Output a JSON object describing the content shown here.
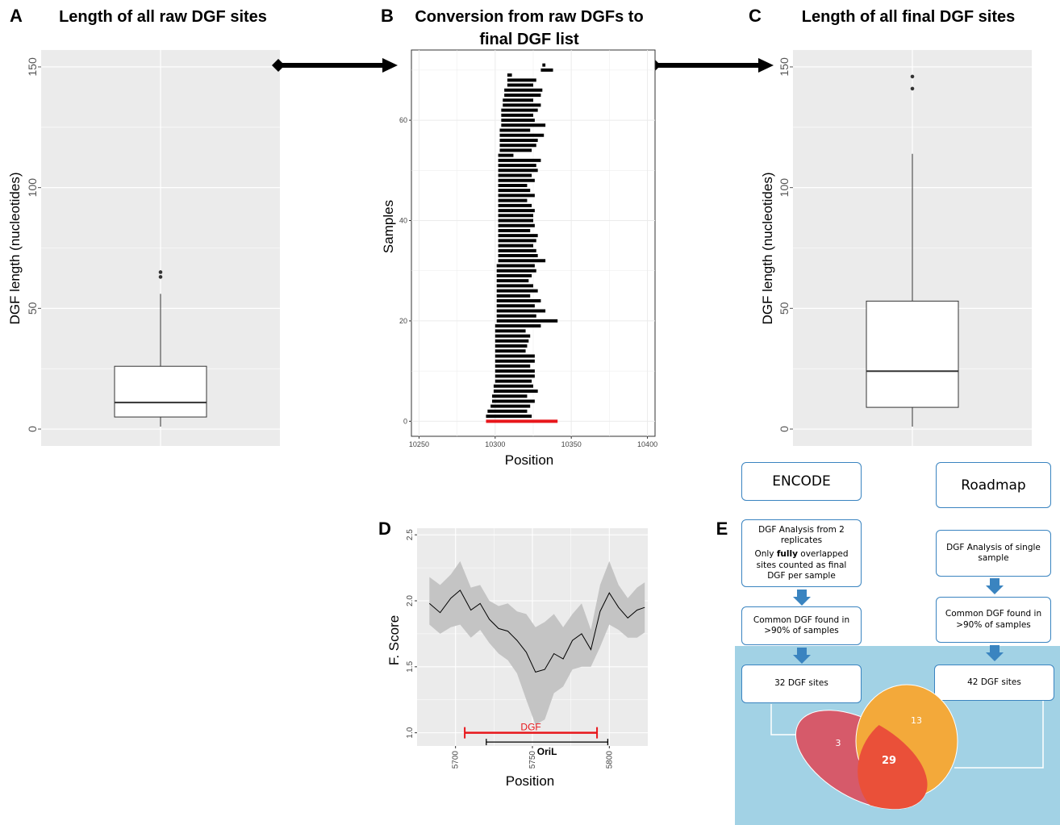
{
  "panels": {
    "A": {
      "letter": "A",
      "title": "Length of all raw DGF sites",
      "ylabel": "DGF length (nucleotides)",
      "yticks": [
        "0",
        "50",
        "100",
        "150"
      ]
    },
    "B": {
      "letter": "B",
      "title_line1": "Conversion from raw DGFs to",
      "title_line2": "final DGF list",
      "xlabel": "Position",
      "ylabel": "Samples",
      "xticks": [
        "10250",
        "10300",
        "10350",
        "10400"
      ],
      "yticks": [
        "0",
        "20",
        "40",
        "60"
      ]
    },
    "C": {
      "letter": "C",
      "title": "Length of all final DGF sites",
      "ylabel": "DGF length (nucleotides)",
      "yticks": [
        "0",
        "50",
        "100",
        "150"
      ]
    },
    "D": {
      "letter": "D",
      "xlabel": "Position",
      "ylabel": "F. Score",
      "xticks": [
        "5700",
        "5750",
        "5800"
      ],
      "yticks": [
        "1.0",
        "1.5",
        "2.0",
        "2.5"
      ],
      "dgf_label": "DGF",
      "oril_label": "OriL"
    },
    "E": {
      "letter": "E",
      "encode": {
        "title": "ENCODE",
        "analysis_line1": "DGF Analysis from 2 replicates",
        "analysis_pre": "Only ",
        "analysis_bold": "fully",
        "analysis_post": " overlapped sites counted as final DGF per sample",
        "common": "Common DGF found in >90% of samples",
        "sites": "32 DGF sites"
      },
      "roadmap": {
        "title": "Roadmap",
        "analysis": "DGF Analysis of single sample",
        "common": "Common DGF found in >90% of samples",
        "sites": "42 DGF sites"
      },
      "venn": {
        "encode_only": "3",
        "roadmap_only": "13",
        "both": "29"
      }
    }
  },
  "colors": {
    "panel_bg": "#ebebeb",
    "red": "#e8161b",
    "blue_arrow": "#3a84c0",
    "blue_area": "#a2d2e5",
    "venn_left": "#d65a6a",
    "venn_right": "#f3a93a",
    "venn_overlap": "#ea5039"
  },
  "chart_data": [
    {
      "panel": "A",
      "type": "box",
      "title": "Length of all raw DGF sites",
      "ylabel": "DGF length (nucleotides)",
      "ylim": [
        -7,
        157
      ],
      "box": {
        "min": 1,
        "q1": 5,
        "median": 11,
        "q3": 26,
        "max": 56,
        "outliers": [
          63,
          65
        ]
      },
      "grid": true
    },
    {
      "panel": "B",
      "type": "segments",
      "title": "Conversion from raw DGFs to final DGF list",
      "xlabel": "Position",
      "ylabel": "Samples",
      "xlim": [
        10245,
        10405
      ],
      "ylim": [
        -3,
        74
      ],
      "final_segment": {
        "sample": 0,
        "start": 10294,
        "end": 10341
      },
      "segments": [
        {
          "sample": 1,
          "start": 10294,
          "end": 10324
        },
        {
          "sample": 2,
          "start": 10295,
          "end": 10321
        },
        {
          "sample": 3,
          "start": 10297,
          "end": 10323
        },
        {
          "sample": 4,
          "start": 10298,
          "end": 10326
        },
        {
          "sample": 5,
          "start": 10298,
          "end": 10321
        },
        {
          "sample": 6,
          "start": 10299,
          "end": 10328
        },
        {
          "sample": 7,
          "start": 10299,
          "end": 10325
        },
        {
          "sample": 8,
          "start": 10300,
          "end": 10324
        },
        {
          "sample": 9,
          "start": 10300,
          "end": 10326
        },
        {
          "sample": 10,
          "start": 10300,
          "end": 10326
        },
        {
          "sample": 11,
          "start": 10300,
          "end": 10323
        },
        {
          "sample": 12,
          "start": 10300,
          "end": 10326
        },
        {
          "sample": 13,
          "start": 10300,
          "end": 10326
        },
        {
          "sample": 14,
          "start": 10300,
          "end": 10320
        },
        {
          "sample": 15,
          "start": 10300,
          "end": 10321
        },
        {
          "sample": 16,
          "start": 10300,
          "end": 10322
        },
        {
          "sample": 17,
          "start": 10300,
          "end": 10323
        },
        {
          "sample": 18,
          "start": 10300,
          "end": 10320
        },
        {
          "sample": 19,
          "start": 10300,
          "end": 10330
        },
        {
          "sample": 20,
          "start": 10301,
          "end": 10341
        },
        {
          "sample": 21,
          "start": 10301,
          "end": 10327
        },
        {
          "sample": 22,
          "start": 10301,
          "end": 10333
        },
        {
          "sample": 23,
          "start": 10301,
          "end": 10326
        },
        {
          "sample": 24,
          "start": 10301,
          "end": 10330
        },
        {
          "sample": 25,
          "start": 10301,
          "end": 10323
        },
        {
          "sample": 26,
          "start": 10301,
          "end": 10328
        },
        {
          "sample": 27,
          "start": 10301,
          "end": 10325
        },
        {
          "sample": 28,
          "start": 10301,
          "end": 10322
        },
        {
          "sample": 29,
          "start": 10301,
          "end": 10324
        },
        {
          "sample": 30,
          "start": 10301,
          "end": 10327
        },
        {
          "sample": 31,
          "start": 10301,
          "end": 10326
        },
        {
          "sample": 32,
          "start": 10302,
          "end": 10333
        },
        {
          "sample": 33,
          "start": 10302,
          "end": 10328
        },
        {
          "sample": 34,
          "start": 10302,
          "end": 10327
        },
        {
          "sample": 35,
          "start": 10302,
          "end": 10325
        },
        {
          "sample": 36,
          "start": 10302,
          "end": 10327
        },
        {
          "sample": 37,
          "start": 10302,
          "end": 10328
        },
        {
          "sample": 38,
          "start": 10302,
          "end": 10323
        },
        {
          "sample": 39,
          "start": 10302,
          "end": 10326
        },
        {
          "sample": 40,
          "start": 10302,
          "end": 10325
        },
        {
          "sample": 41,
          "start": 10302,
          "end": 10325
        },
        {
          "sample": 42,
          "start": 10302,
          "end": 10326
        },
        {
          "sample": 43,
          "start": 10302,
          "end": 10324
        },
        {
          "sample": 44,
          "start": 10302,
          "end": 10321
        },
        {
          "sample": 45,
          "start": 10302,
          "end": 10326
        },
        {
          "sample": 46,
          "start": 10302,
          "end": 10323
        },
        {
          "sample": 47,
          "start": 10302,
          "end": 10321
        },
        {
          "sample": 48,
          "start": 10302,
          "end": 10326
        },
        {
          "sample": 49,
          "start": 10302,
          "end": 10324
        },
        {
          "sample": 50,
          "start": 10302,
          "end": 10328
        },
        {
          "sample": 51,
          "start": 10302,
          "end": 10327
        },
        {
          "sample": 52,
          "start": 10302,
          "end": 10330
        },
        {
          "sample": 53,
          "start": 10302,
          "end": 10312
        },
        {
          "sample": 54,
          "start": 10303,
          "end": 10324
        },
        {
          "sample": 55,
          "start": 10303,
          "end": 10327
        },
        {
          "sample": 56,
          "start": 10303,
          "end": 10328
        },
        {
          "sample": 57,
          "start": 10303,
          "end": 10332
        },
        {
          "sample": 58,
          "start": 10303,
          "end": 10323
        },
        {
          "sample": 59,
          "start": 10304,
          "end": 10333
        },
        {
          "sample": 60,
          "start": 10304,
          "end": 10326
        },
        {
          "sample": 61,
          "start": 10304,
          "end": 10325
        },
        {
          "sample": 62,
          "start": 10304,
          "end": 10328
        },
        {
          "sample": 63,
          "start": 10305,
          "end": 10330
        },
        {
          "sample": 64,
          "start": 10305,
          "end": 10325
        },
        {
          "sample": 65,
          "start": 10306,
          "end": 10330
        },
        {
          "sample": 66,
          "start": 10306,
          "end": 10331
        },
        {
          "sample": 67,
          "start": 10308,
          "end": 10325
        },
        {
          "sample": 68,
          "start": 10308,
          "end": 10327
        },
        {
          "sample": 69,
          "start": 10308,
          "end": 10311
        },
        {
          "sample": 70,
          "start": 10330,
          "end": 10338
        },
        {
          "sample": 71,
          "start": 10331,
          "end": 10333
        }
      ],
      "grid": true
    },
    {
      "panel": "C",
      "type": "box",
      "title": "Length of all final DGF sites",
      "ylabel": "DGF length (nucleotides)",
      "ylim": [
        -7,
        157
      ],
      "box": {
        "min": 1,
        "q1": 9,
        "median": 24,
        "q3": 53,
        "max": 114,
        "outliers": [
          141,
          146
        ]
      },
      "grid": true
    },
    {
      "panel": "D",
      "type": "line",
      "xlabel": "Position",
      "ylabel": "F. Score",
      "xlim": [
        5675,
        5825
      ],
      "ylim": [
        0.9,
        2.55
      ],
      "x": [
        5683,
        5690,
        5697,
        5703,
        5710,
        5716,
        5722,
        5728,
        5734,
        5740,
        5746,
        5752,
        5758,
        5764,
        5770,
        5776,
        5782,
        5788,
        5794,
        5800,
        5806,
        5812,
        5818,
        5823
      ],
      "y": [
        1.98,
        1.91,
        2.02,
        2.08,
        1.93,
        1.98,
        1.86,
        1.79,
        1.77,
        1.7,
        1.61,
        1.46,
        1.48,
        1.6,
        1.56,
        1.7,
        1.75,
        1.63,
        1.92,
        2.06,
        1.95,
        1.87,
        1.93,
        1.95
      ],
      "lower": [
        1.82,
        1.75,
        1.8,
        1.82,
        1.72,
        1.78,
        1.68,
        1.6,
        1.55,
        1.45,
        1.25,
        1.06,
        1.1,
        1.3,
        1.35,
        1.48,
        1.5,
        1.5,
        1.65,
        1.82,
        1.78,
        1.72,
        1.72,
        1.76
      ],
      "upper": [
        2.18,
        2.12,
        2.2,
        2.3,
        2.1,
        2.12,
        2.0,
        1.96,
        1.98,
        1.92,
        1.9,
        1.8,
        1.84,
        1.9,
        1.8,
        1.9,
        1.98,
        1.78,
        2.12,
        2.3,
        2.12,
        2.02,
        2.1,
        2.14
      ],
      "annotations": [
        {
          "label": "DGF",
          "start": 5706,
          "end": 5792,
          "y": 1.0
        },
        {
          "label": "OriL",
          "start": 5720,
          "end": 5799,
          "y": 0.93
        }
      ],
      "grid": true
    }
  ]
}
